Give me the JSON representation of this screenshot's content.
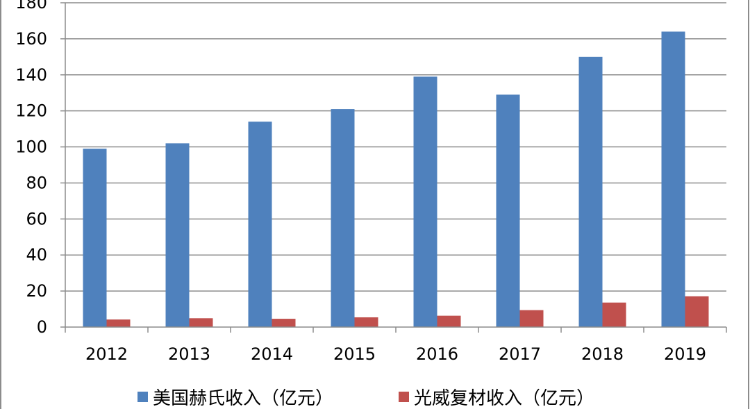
{
  "chart_data": {
    "type": "bar",
    "title": "",
    "xlabel": "",
    "ylabel": "",
    "categories": [
      "2012",
      "2013",
      "2014",
      "2015",
      "2016",
      "2017",
      "2018",
      "2019"
    ],
    "series": [
      {
        "name": "美国赫氏收入（亿元）",
        "color": "#4f81bd",
        "values": [
          99,
          102,
          114,
          121,
          139,
          129,
          150,
          164
        ]
      },
      {
        "name": "光威复材收入（亿元）",
        "color": "#c0504d",
        "values": [
          4.2,
          4.9,
          4.6,
          5.4,
          6.3,
          9.4,
          13.6,
          17.1
        ]
      }
    ],
    "ylim": [
      0,
      180
    ],
    "yticks": [
      "0",
      "20",
      "40",
      "60",
      "80",
      "100",
      "120",
      "140",
      "160",
      "180"
    ],
    "grid": true,
    "legend": "bottom"
  }
}
